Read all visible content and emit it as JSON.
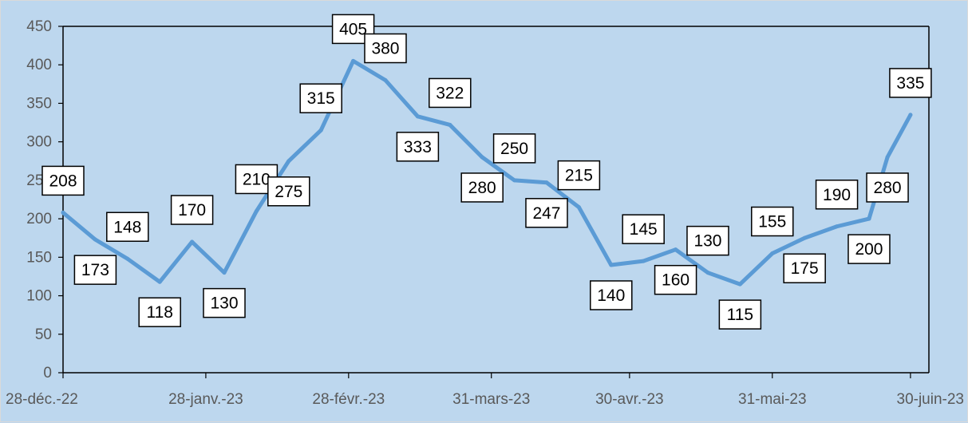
{
  "chart_data": {
    "type": "line",
    "title": "",
    "xlabel": "",
    "ylabel": "",
    "ylim": [
      0,
      450
    ],
    "y_ticks": [
      0,
      50,
      100,
      150,
      200,
      250,
      300,
      350,
      400,
      450
    ],
    "x_tick_labels": [
      "28-déc.-22",
      "28-janv.-23",
      "28-févr.-23",
      "31-mars-23",
      "30-avr.-23",
      "31-mai-23",
      "30-juin-23"
    ],
    "grid": false,
    "legend": "none",
    "series": [
      {
        "color": "#5b9bd5",
        "points": [
          {
            "x": "2022-12-28",
            "y": 208,
            "label": "208",
            "label_pos": "above"
          },
          {
            "x": "2023-01-04",
            "y": 173,
            "label": "173",
            "label_pos": "below"
          },
          {
            "x": "2023-01-11",
            "y": 148,
            "label": "148",
            "label_pos": "above"
          },
          {
            "x": "2023-01-18",
            "y": 118,
            "label": "118",
            "label_pos": "below"
          },
          {
            "x": "2023-01-25",
            "y": 170,
            "label": "170",
            "label_pos": "above"
          },
          {
            "x": "2023-02-01",
            "y": 130,
            "label": "130",
            "label_pos": "below"
          },
          {
            "x": "2023-02-08",
            "y": 210,
            "label": "210",
            "label_pos": "above"
          },
          {
            "x": "2023-02-15",
            "y": 275,
            "label": "275",
            "label_pos": "below"
          },
          {
            "x": "2023-02-22",
            "y": 315,
            "label": "315",
            "label_pos": "above"
          },
          {
            "x": "2023-03-01",
            "y": 405,
            "label": "405",
            "label_pos": "above"
          },
          {
            "x": "2023-03-08",
            "y": 380,
            "label": "380",
            "label_pos": "above"
          },
          {
            "x": "2023-03-15",
            "y": 333,
            "label": "333",
            "label_pos": "below"
          },
          {
            "x": "2023-03-22",
            "y": 322,
            "label": "322",
            "label_pos": "above"
          },
          {
            "x": "2023-03-29",
            "y": 280,
            "label": "280",
            "label_pos": "below"
          },
          {
            "x": "2023-04-05",
            "y": 250,
            "label": "250",
            "label_pos": "above"
          },
          {
            "x": "2023-04-12",
            "y": 247,
            "label": "247",
            "label_pos": "below"
          },
          {
            "x": "2023-04-19",
            "y": 215,
            "label": "215",
            "label_pos": "above"
          },
          {
            "x": "2023-04-26",
            "y": 140,
            "label": "140",
            "label_pos": "below"
          },
          {
            "x": "2023-05-03",
            "y": 145,
            "label": "145",
            "label_pos": "above"
          },
          {
            "x": "2023-05-10",
            "y": 160,
            "label": "160",
            "label_pos": "below"
          },
          {
            "x": "2023-05-17",
            "y": 130,
            "label": "130",
            "label_pos": "above"
          },
          {
            "x": "2023-05-24",
            "y": 115,
            "label": "115",
            "label_pos": "below"
          },
          {
            "x": "2023-05-31",
            "y": 155,
            "label": "155",
            "label_pos": "above"
          },
          {
            "x": "2023-06-07",
            "y": 175,
            "label": "175",
            "label_pos": "below"
          },
          {
            "x": "2023-06-14",
            "y": 190,
            "label": "190",
            "label_pos": "above"
          },
          {
            "x": "2023-06-21",
            "y": 200,
            "label": "200",
            "label_pos": "below"
          },
          {
            "x": "2023-06-25",
            "y": 280,
            "label": "280",
            "label_pos": "below"
          },
          {
            "x": "2023-06-30",
            "y": 335,
            "label": "335",
            "label_pos": "above"
          }
        ]
      }
    ]
  }
}
